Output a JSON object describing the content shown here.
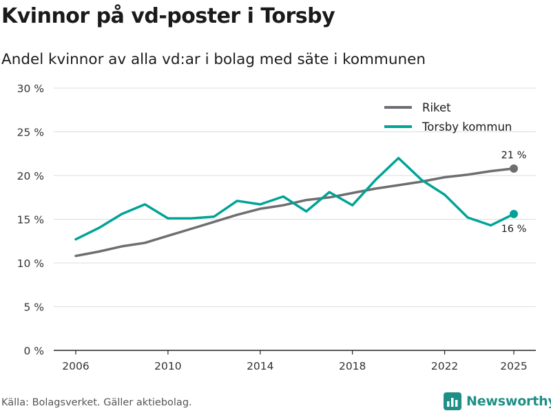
{
  "title": "Kvinnor på vd-poster i Torsby",
  "subtitle": "Andel kvinnor av alla vd:ar i bolag med säte i kommunen",
  "source": "Källa: Bolagsverket. Gäller aktiebolag.",
  "brand": {
    "name": "Newsworthy",
    "icon": "newsworthy-logo-icon",
    "color": "#1f8f86"
  },
  "chart_data": {
    "type": "line",
    "x": [
      2006,
      2007,
      2008,
      2009,
      2010,
      2011,
      2012,
      2013,
      2014,
      2015,
      2016,
      2017,
      2018,
      2019,
      2020,
      2021,
      2022,
      2023,
      2024,
      2025
    ],
    "xlim": [
      2006,
      2025
    ],
    "xticks": [
      2006,
      2010,
      2014,
      2018,
      2022,
      2025
    ],
    "xtick_labels": [
      "2006",
      "2010",
      "2014",
      "2018",
      "2022",
      "2025"
    ],
    "ylim": [
      0,
      30
    ],
    "yticks": [
      0,
      5,
      10,
      15,
      20,
      25,
      30
    ],
    "ytick_labels": [
      "0 %",
      "5 %",
      "10 %",
      "15 %",
      "20 %",
      "25 %",
      "30 %"
    ],
    "grid": true,
    "legend_position": "top-right",
    "series": [
      {
        "name": "Riket",
        "color": "#6d6d72",
        "values": [
          10.8,
          11.3,
          11.9,
          12.3,
          13.1,
          13.9,
          14.7,
          15.5,
          16.2,
          16.6,
          17.2,
          17.5,
          18.0,
          18.5,
          18.9,
          19.3,
          19.8,
          20.1,
          20.5,
          20.8
        ],
        "end_label": "21 %"
      },
      {
        "name": "Torsby kommun",
        "color": "#00a396",
        "values": [
          12.7,
          14.0,
          15.6,
          16.7,
          15.1,
          15.1,
          15.3,
          17.1,
          16.7,
          17.6,
          15.9,
          18.1,
          16.6,
          19.5,
          22.0,
          19.5,
          17.8,
          15.2,
          14.3,
          15.6
        ],
        "end_label": "16 %"
      }
    ]
  }
}
